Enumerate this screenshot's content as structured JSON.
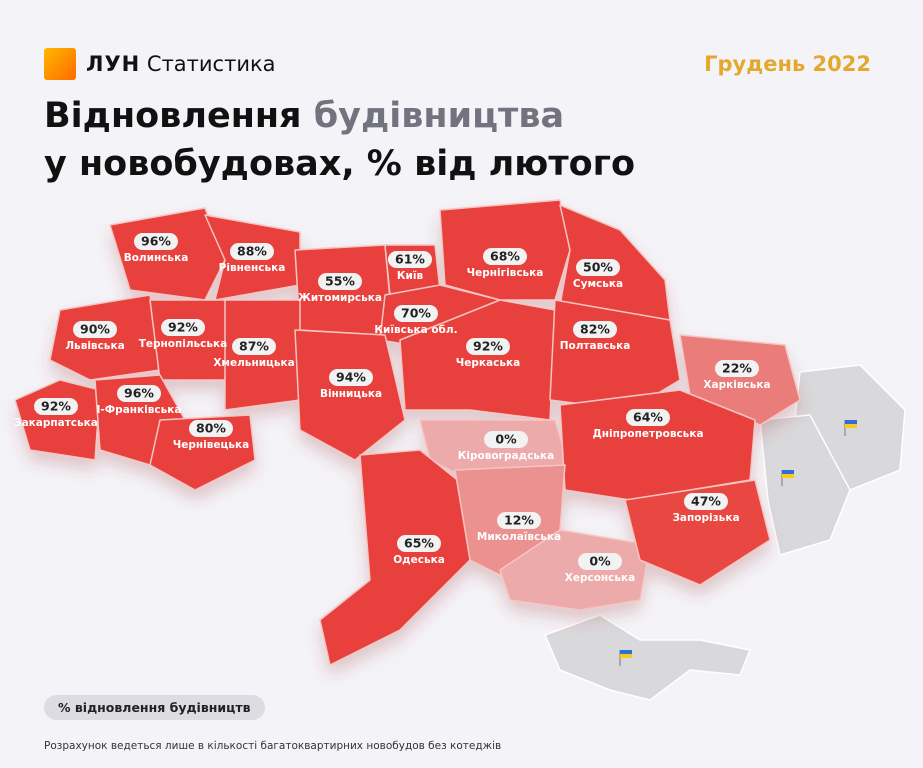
{
  "header": {
    "brand": "ЛУН",
    "section": "Статистика",
    "date": "Грудень 2022"
  },
  "title": {
    "line1_a": "Відновлення",
    "line1_b": "будівництва",
    "line2": "у новобудовах, % від лютого"
  },
  "regions": [
    {
      "name": "Волинська",
      "value": 96,
      "label": "96%"
    },
    {
      "name": "Рівненська",
      "value": 88,
      "label": "88%"
    },
    {
      "name": "Житомирська",
      "value": 55,
      "label": "55%"
    },
    {
      "name": "Київ",
      "value": 61,
      "label": "61%"
    },
    {
      "name": "Київська обл.",
      "value": 70,
      "label": "70%"
    },
    {
      "name": "Чернігівська",
      "value": 68,
      "label": "68%"
    },
    {
      "name": "Сумська",
      "value": 50,
      "label": "50%"
    },
    {
      "name": "Львівська",
      "value": 90,
      "label": "90%"
    },
    {
      "name": "Тернопільська",
      "value": 92,
      "label": "92%"
    },
    {
      "name": "Хмельницька",
      "value": 87,
      "label": "87%"
    },
    {
      "name": "Вінницька",
      "value": 94,
      "label": "94%"
    },
    {
      "name": "Черкаська",
      "value": 92,
      "label": "92%"
    },
    {
      "name": "Полтавська",
      "value": 82,
      "label": "82%"
    },
    {
      "name": "Харківська",
      "value": 22,
      "label": "22%"
    },
    {
      "name": "Закарпатська",
      "value": 92,
      "label": "92%"
    },
    {
      "name": "І-Франківська",
      "value": 96,
      "label": "96%"
    },
    {
      "name": "Чернівецька",
      "value": 80,
      "label": "80%"
    },
    {
      "name": "Кіровоградська",
      "value": 0,
      "label": "0%"
    },
    {
      "name": "Дніпропетровська",
      "value": 64,
      "label": "64%"
    },
    {
      "name": "Одеська",
      "value": 65,
      "label": "65%"
    },
    {
      "name": "Миколаївська",
      "value": 12,
      "label": "12%"
    },
    {
      "name": "Херсонська",
      "value": 0,
      "label": "0%"
    },
    {
      "name": "Запорізька",
      "value": 47,
      "label": "47%"
    }
  ],
  "legend": "% відновлення будівництв",
  "footnote": "Розрахунок ведеться лише в кількості багатоквартирних новобудов без котеджів"
}
